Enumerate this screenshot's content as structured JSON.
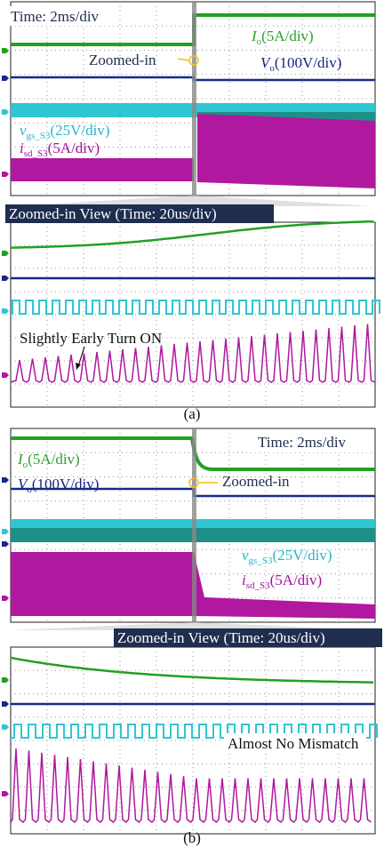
{
  "figure_a": {
    "overview": {
      "time_label": "Time: 2ms/div",
      "zoom_marker": "Zoomed-in",
      "io": {
        "symbol": "I",
        "sub": "o",
        "scale": "(5A/div)"
      },
      "vo": {
        "symbol": "V",
        "sub": "o",
        "scale": "(100V/div)"
      },
      "vgs": {
        "symbol": "v",
        "sub": "gs_S3",
        "scale": "(25V/div)"
      },
      "isd": {
        "symbol": "i",
        "sub": "sd_S3",
        "scale": "(5A/div)"
      }
    },
    "zoom_title": "Zoomed-in View (Time: 20us/div)",
    "zoom_annotation": "Slightly Early Turn ON",
    "caption": "(a)"
  },
  "figure_b": {
    "overview": {
      "time_label": "Time: 2ms/div",
      "zoom_marker": "Zoomed-in",
      "io": {
        "symbol": "I",
        "sub": "o",
        "scale": "(5A/div)"
      },
      "vo": {
        "symbol": "V",
        "sub": "o",
        "scale": "(100V/div)"
      },
      "vgs": {
        "symbol": "v",
        "sub": "gs_S3",
        "scale": "(25V/div)"
      },
      "isd": {
        "symbol": "i",
        "sub": "sd_S3",
        "scale": "(5A/div)"
      }
    },
    "zoom_title": "Zoomed-in View (Time: 20us/div)",
    "zoom_annotation": "Almost No Mismatch",
    "caption": "(b)"
  }
}
